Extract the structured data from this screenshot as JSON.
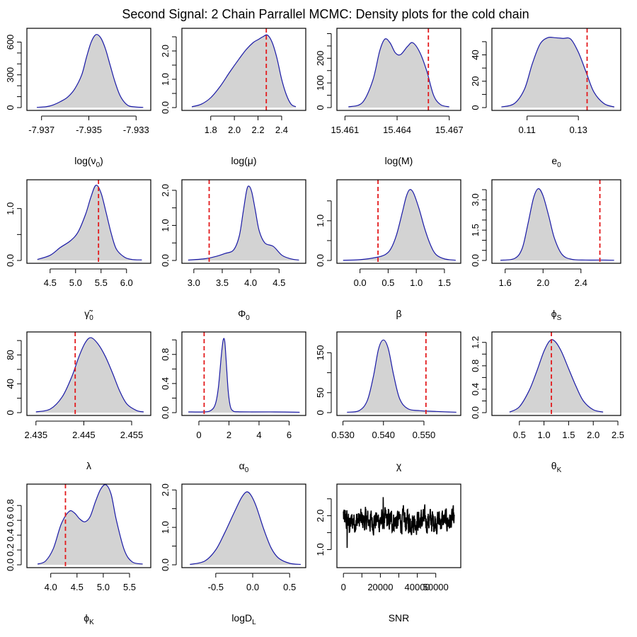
{
  "figure": {
    "title": "Second Signal: 2 Chain Parrallel MCMC: Density plots for the cold chain"
  },
  "colors": {
    "fill": "#d3d3d3",
    "line": "#1a1aa6",
    "ref": "#e31a1c",
    "trace": "#000000"
  },
  "chart_data": [
    {
      "type": "area",
      "xlabel": "log(ν",
      "xlabel_sub": "0",
      "xlabel_suffix": ")",
      "xlim": [
        -7.9375,
        -7.9325
      ],
      "ylim": [
        0,
        700
      ],
      "xticks": [
        -7.937,
        -7.935,
        -7.933
      ],
      "xtick_labels": [
        "-7.937",
        "-7.935",
        "-7.933"
      ],
      "yticks": [
        0,
        100,
        200,
        300,
        400,
        500,
        600
      ],
      "ytick_labels": [
        "0",
        "",
        "",
        "300",
        "",
        "",
        "600"
      ],
      "x": [
        -7.9372,
        -7.9368,
        -7.9365,
        -7.9362,
        -7.9359,
        -7.9356,
        -7.9353,
        -7.9351,
        -7.9349,
        -7.9347,
        -7.9345,
        -7.9343,
        -7.9341,
        -7.9339,
        -7.9337,
        -7.9335,
        -7.9333,
        -7.933,
        -7.9327
      ],
      "y": [
        2,
        8,
        25,
        55,
        95,
        170,
        300,
        460,
        600,
        668,
        640,
        540,
        390,
        240,
        120,
        50,
        15,
        5,
        2
      ],
      "ref": null
    },
    {
      "type": "area",
      "xlabel": "log(μ)",
      "xlim": [
        1.58,
        2.58
      ],
      "ylim": [
        0,
        2.7
      ],
      "xticks": [
        1.8,
        2.0,
        2.2,
        2.4
      ],
      "xtick_labels": [
        "1.8",
        "2.0",
        "2.2",
        "2.4"
      ],
      "yticks": [
        0,
        0.5,
        1.0,
        1.5,
        2.0,
        2.5
      ],
      "ytick_labels": [
        "0.0",
        "",
        "1.0",
        "",
        "2.0",
        ""
      ],
      "x": [
        1.64,
        1.72,
        1.8,
        1.88,
        1.96,
        2.04,
        2.1,
        2.16,
        2.2,
        2.24,
        2.28,
        2.32,
        2.36,
        2.4,
        2.44,
        2.48,
        2.52
      ],
      "y": [
        0.03,
        0.12,
        0.35,
        0.75,
        1.25,
        1.72,
        2.05,
        2.3,
        2.4,
        2.5,
        2.56,
        2.3,
        1.75,
        1.0,
        0.45,
        0.12,
        0.03
      ],
      "ref": 2.27
    },
    {
      "type": "area",
      "xlabel": "log(M)",
      "xlim": [
        15.4607,
        15.4675
      ],
      "ylim": [
        0,
        310
      ],
      "xticks": [
        15.461,
        15.464,
        15.467
      ],
      "xtick_labels": [
        "15.461",
        "15.464",
        "15.467"
      ],
      "yticks": [
        0,
        50,
        100,
        150,
        200,
        250,
        300
      ],
      "ytick_labels": [
        "0",
        "",
        "100",
        "",
        "200",
        "",
        ""
      ],
      "x": [
        15.4612,
        15.462,
        15.4626,
        15.463,
        15.4633,
        15.4636,
        15.4639,
        15.4642,
        15.4646,
        15.4649,
        15.4653,
        15.4657,
        15.4661,
        15.4665,
        15.467
      ],
      "y": [
        3,
        20,
        110,
        230,
        278,
        262,
        222,
        215,
        248,
        263,
        225,
        150,
        50,
        12,
        3
      ],
      "ref": 15.4658
    },
    {
      "type": "area",
      "xlabel": "e",
      "xlabel_sub": "0",
      "xlabel_suffix": "",
      "xlim": [
        0.0974,
        0.1454
      ],
      "ylim": [
        0,
        58
      ],
      "xticks": [
        0.11,
        0.13
      ],
      "xtick_labels": [
        "0.11",
        "0.13"
      ],
      "yticks": [
        0,
        10,
        20,
        30,
        40,
        50
      ],
      "ytick_labels": [
        "0",
        "",
        "20",
        "",
        "40",
        ""
      ],
      "x": [
        0.1,
        0.105,
        0.109,
        0.112,
        0.115,
        0.118,
        0.121,
        0.124,
        0.127,
        0.13,
        0.133,
        0.136,
        0.14,
        0.144
      ],
      "y": [
        0.5,
        3,
        14,
        33,
        48,
        53,
        53,
        52.5,
        52,
        42,
        27,
        12,
        3,
        0.5
      ],
      "ref": 0.1334
    },
    {
      "type": "area",
      "xlabel": "γ̃",
      "xlabel_sub": "0",
      "xlabel_suffix": "",
      "xlim": [
        4.1,
        6.42
      ],
      "ylim": [
        0,
        1.5
      ],
      "xticks": [
        4.5,
        5.0,
        5.5,
        6.0
      ],
      "xtick_labels": [
        "4.5",
        "5.0",
        "5.5",
        "6.0"
      ],
      "yticks": [
        0,
        0.5,
        1.0
      ],
      "ytick_labels": [
        "0.0",
        "",
        "1.0"
      ],
      "x": [
        4.25,
        4.5,
        4.7,
        4.9,
        5.05,
        5.2,
        5.3,
        5.4,
        5.5,
        5.6,
        5.7,
        5.8,
        5.95,
        6.1,
        6.3
      ],
      "y": [
        0.02,
        0.1,
        0.25,
        0.38,
        0.55,
        0.9,
        1.22,
        1.45,
        1.3,
        0.92,
        0.52,
        0.22,
        0.07,
        0.02,
        0.01
      ],
      "ref": 5.45
    },
    {
      "type": "area",
      "xlabel": "Φ",
      "xlabel_sub": "0",
      "xlabel_suffix": "",
      "xlim": [
        2.84,
        4.92
      ],
      "ylim": [
        0,
        2.22
      ],
      "xticks": [
        3.0,
        3.5,
        4.0,
        4.5
      ],
      "xtick_labels": [
        "3.0",
        "3.5",
        "4.0",
        "4.5"
      ],
      "yticks": [
        0,
        0.5,
        1.0,
        1.5,
        2.0
      ],
      "ytick_labels": [
        "0.0",
        "",
        "1.0",
        "",
        "2.0"
      ],
      "x": [
        2.9,
        3.2,
        3.4,
        3.55,
        3.7,
        3.8,
        3.87,
        3.93,
        3.97,
        4.02,
        4.08,
        4.15,
        4.25,
        4.4,
        4.55,
        4.7,
        4.85
      ],
      "y": [
        0.01,
        0.05,
        0.12,
        0.2,
        0.3,
        0.7,
        1.4,
        2.0,
        2.12,
        1.95,
        1.45,
        0.85,
        0.5,
        0.4,
        0.15,
        0.05,
        0.01
      ],
      "ref": 3.27
    },
    {
      "type": "area",
      "xlabel": "β",
      "xlim": [
        -0.36,
        1.74
      ],
      "ylim": [
        0,
        1.96
      ],
      "xticks": [
        0.0,
        0.5,
        1.0,
        1.5
      ],
      "xtick_labels": [
        "0.0",
        "0.5",
        "1.0",
        "1.5"
      ],
      "yticks": [
        0,
        0.5,
        1.0,
        1.5
      ],
      "ytick_labels": [
        "0.0",
        "",
        "1.0",
        ""
      ],
      "x": [
        -0.3,
        0.0,
        0.3,
        0.45,
        0.55,
        0.65,
        0.75,
        0.82,
        0.88,
        0.95,
        1.05,
        1.15,
        1.25,
        1.35,
        1.5,
        1.7
      ],
      "y": [
        0.005,
        0.02,
        0.08,
        0.15,
        0.3,
        0.65,
        1.2,
        1.6,
        1.78,
        1.7,
        1.3,
        0.8,
        0.4,
        0.15,
        0.04,
        0.005
      ],
      "ref": 0.32
    },
    {
      "type": "area",
      "xlabel": "ϕ",
      "xlabel_sub": "S",
      "xlabel_suffix": "",
      "xlim": [
        1.49,
        2.79
      ],
      "ylim": [
        0,
        3.85
      ],
      "xticks": [
        1.6,
        2.0,
        2.4
      ],
      "xtick_labels": [
        "1.6",
        "2.0",
        "2.4"
      ],
      "yticks": [
        0,
        0.5,
        1.0,
        1.5,
        2.0,
        2.5,
        3.0,
        3.5
      ],
      "ytick_labels": [
        "0.0",
        "",
        "",
        "1.5",
        "",
        "",
        "3.0",
        ""
      ],
      "x": [
        1.55,
        1.7,
        1.78,
        1.84,
        1.9,
        1.95,
        2.0,
        2.06,
        2.12,
        2.2,
        2.3,
        2.45,
        2.6,
        2.75
      ],
      "y": [
        0.01,
        0.1,
        0.6,
        1.8,
        3.1,
        3.55,
        3.2,
        2.2,
        1.1,
        0.3,
        0.06,
        0.02,
        0.02,
        0.01
      ],
      "ref": 2.6
    },
    {
      "type": "area",
      "xlabel": "λ",
      "xlim": [
        2.4337,
        2.4584
      ],
      "ylim": [
        0,
        108
      ],
      "xticks": [
        2.435,
        2.445,
        2.455
      ],
      "xtick_labels": [
        "2.435",
        "2.445",
        "2.455"
      ],
      "yticks": [
        0,
        20,
        40,
        60,
        80,
        100
      ],
      "ytick_labels": [
        "0",
        "",
        "40",
        "",
        "80",
        ""
      ],
      "x": [
        2.435,
        2.438,
        2.4405,
        2.4425,
        2.444,
        2.4453,
        2.4465,
        2.448,
        2.4495,
        2.451,
        2.4525,
        2.454,
        2.456,
        2.4575
      ],
      "y": [
        1,
        5,
        22,
        50,
        78,
        97,
        104,
        95,
        78,
        55,
        30,
        12,
        3,
        1
      ],
      "ref": 2.4432
    },
    {
      "type": "area",
      "xlabel": "α",
      "xlabel_sub": "0",
      "xlabel_suffix": "",
      "xlim": [
        -0.94,
        6.92
      ],
      "ylim": [
        0,
        1.07
      ],
      "xticks": [
        0,
        2,
        4,
        6
      ],
      "xtick_labels": [
        "0",
        "2",
        "4",
        "6"
      ],
      "yticks": [
        0,
        0.2,
        0.4,
        0.6,
        0.8,
        1.0
      ],
      "ytick_labels": [
        "0.0",
        "",
        "0.4",
        "",
        "0.8",
        ""
      ],
      "x": [
        -0.7,
        0.3,
        0.8,
        1.1,
        1.3,
        1.5,
        1.62,
        1.72,
        1.82,
        1.95,
        2.1,
        2.3,
        2.6,
        3.5,
        5.0,
        6.7
      ],
      "y": [
        0.01,
        0.01,
        0.03,
        0.12,
        0.35,
        0.8,
        1.0,
        0.98,
        0.7,
        0.3,
        0.08,
        0.02,
        0.012,
        0.01,
        0.01,
        0.005
      ],
      "ref": 0.35
    },
    {
      "type": "area",
      "xlabel": "χ",
      "xlim": [
        0.5292,
        0.5584
      ],
      "ylim": [
        0,
        195
      ],
      "xticks": [
        0.53,
        0.54,
        0.55
      ],
      "xtick_labels": [
        "0.530",
        "0.540",
        "0.550"
      ],
      "yticks": [
        0,
        50,
        100,
        150
      ],
      "ytick_labels": [
        "0",
        "50",
        "",
        "150"
      ],
      "x": [
        0.531,
        0.534,
        0.536,
        0.5375,
        0.5388,
        0.54,
        0.5412,
        0.5425,
        0.544,
        0.546,
        0.549,
        0.553,
        0.558
      ],
      "y": [
        1,
        5,
        30,
        90,
        160,
        182,
        160,
        95,
        35,
        10,
        5,
        3,
        1
      ],
      "ref": 0.5505
    },
    {
      "type": "area",
      "xlabel": "θ",
      "xlabel_sub": "K",
      "xlabel_suffix": "",
      "xlim": [
        0.0,
        2.5
      ],
      "ylim": [
        0,
        1.33
      ],
      "xticks": [
        0.5,
        1.0,
        1.5,
        2.0,
        2.5
      ],
      "xtick_labels": [
        "0.5",
        "1.0",
        "1.5",
        "2.0",
        "2.5"
      ],
      "yticks": [
        0,
        0.2,
        0.4,
        0.6,
        0.8,
        1.0,
        1.2
      ],
      "ytick_labels": [
        "0.0",
        "",
        "0.4",
        "",
        "0.8",
        "",
        "1.2"
      ],
      "x": [
        0.3,
        0.5,
        0.7,
        0.85,
        1.0,
        1.12,
        1.22,
        1.35,
        1.5,
        1.65,
        1.8,
        2.0,
        2.2
      ],
      "y": [
        0.01,
        0.1,
        0.38,
        0.7,
        1.05,
        1.23,
        1.22,
        1.05,
        0.75,
        0.45,
        0.2,
        0.05,
        0.01
      ],
      "ref": 1.15
    },
    {
      "type": "area",
      "xlabel": "ϕ",
      "xlabel_sub": "K",
      "xlabel_suffix": "",
      "xlim": [
        3.6,
        5.85
      ],
      "ylim": [
        0,
        1.05
      ],
      "xticks": [
        4.0,
        4.5,
        5.0,
        5.5
      ],
      "xtick_labels": [
        "4.0",
        "4.5",
        "5.0",
        "5.5"
      ],
      "yticks": [
        0,
        0.2,
        0.4,
        0.6,
        0.8
      ],
      "ytick_labels": [
        "0.0",
        "0.2",
        "0.4",
        "0.6",
        "0.8"
      ],
      "x": [
        3.75,
        3.9,
        4.05,
        4.2,
        4.35,
        4.45,
        4.55,
        4.65,
        4.75,
        4.85,
        4.95,
        5.05,
        5.15,
        5.25,
        5.4,
        5.55,
        5.75
      ],
      "y": [
        0.01,
        0.05,
        0.22,
        0.55,
        0.72,
        0.7,
        0.62,
        0.58,
        0.65,
        0.85,
        1.02,
        1.08,
        0.95,
        0.6,
        0.2,
        0.04,
        0.01
      ],
      "ref": 4.28
    },
    {
      "type": "area",
      "xlabel": "logD",
      "xlabel_sub": "L",
      "xlabel_suffix": "",
      "xlim": [
        -0.92,
        0.68
      ],
      "ylim": [
        0,
        2.08
      ],
      "xticks": [
        -0.5,
        0.0,
        0.5
      ],
      "xtick_labels": [
        "-0.5",
        "0.0",
        "0.5"
      ],
      "yticks": [
        0,
        0.5,
        1.0,
        1.5,
        2.0
      ],
      "ytick_labels": [
        "0.0",
        "",
        "1.0",
        "",
        "2.0"
      ],
      "x": [
        -0.85,
        -0.65,
        -0.5,
        -0.38,
        -0.25,
        -0.15,
        -0.08,
        -0.02,
        0.05,
        0.15,
        0.25,
        0.35,
        0.5,
        0.65
      ],
      "y": [
        0.01,
        0.1,
        0.4,
        0.85,
        1.4,
        1.8,
        1.95,
        1.85,
        1.55,
        0.95,
        0.45,
        0.18,
        0.04,
        0.01
      ],
      "ref": null
    },
    {
      "type": "line",
      "xlabel": "SNR",
      "xlim": [
        -2000,
        62000
      ],
      "ylim": [
        0.55,
        2.85
      ],
      "xticks": [
        0,
        20000,
        40000
      ],
      "xtick_labels": [
        "0",
        "20000",
        "40000"
      ],
      "extra_tick_label": {
        "value": 50000,
        "label": "50000"
      },
      "xticks_unlabeled": [
        10000,
        30000,
        50000
      ],
      "yticks": [
        1.0,
        1.5,
        2.0,
        2.5
      ],
      "ytick_labels": [
        "1.0",
        "",
        "2.0",
        ""
      ],
      "n": 600,
      "x_end": 60000,
      "ref": null
    }
  ]
}
